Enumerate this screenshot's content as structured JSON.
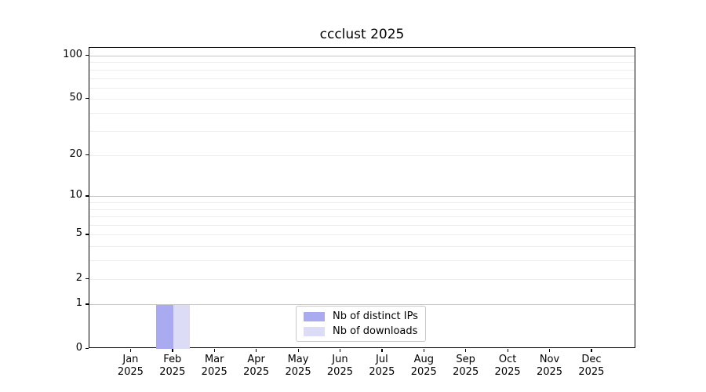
{
  "title": "ccclust 2025",
  "chart_data": {
    "type": "bar",
    "title": "ccclust 2025",
    "year": "2025",
    "months": [
      "Jan",
      "Feb",
      "Mar",
      "Apr",
      "May",
      "Jun",
      "Jul",
      "Aug",
      "Sep",
      "Oct",
      "Nov",
      "Dec"
    ],
    "categories": [
      "Jan 2025",
      "Feb 2025",
      "Mar 2025",
      "Apr 2025",
      "May 2025",
      "Jun 2025",
      "Jul 2025",
      "Aug 2025",
      "Sep 2025",
      "Oct 2025",
      "Nov 2025",
      "Dec 2025"
    ],
    "series": [
      {
        "name": "Nb of distinct IPs",
        "color": "#aaaaf0",
        "values": [
          0,
          1,
          0,
          0,
          0,
          0,
          0,
          0,
          0,
          0,
          0,
          0
        ]
      },
      {
        "name": "Nb of downloads",
        "color": "#dcdcf7",
        "values": [
          0,
          1,
          0,
          0,
          0,
          0,
          0,
          0,
          0,
          0,
          0,
          0
        ]
      }
    ],
    "xlabel": "",
    "ylabel": "",
    "y_scale": "log1p",
    "ylim": [
      0,
      114
    ],
    "y_ticks": [
      0,
      1,
      2,
      5,
      10,
      20,
      50,
      100
    ],
    "y_major_gridlines": [
      1,
      10,
      100
    ],
    "y_minor_gridlines": [
      2,
      3,
      4,
      5,
      6,
      7,
      8,
      9,
      20,
      30,
      40,
      50,
      60,
      70,
      80,
      90
    ],
    "grid": "horizontal",
    "legend_position": "lower center",
    "colors": {
      "major_grid": "#c6c6c6",
      "minor_grid": "#ededed",
      "axis": "#000000",
      "background": "#ffffff"
    }
  }
}
